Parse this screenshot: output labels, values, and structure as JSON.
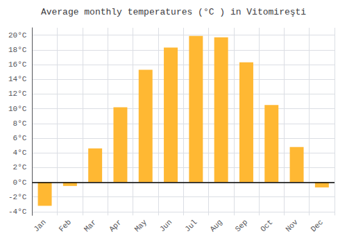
{
  "chart_data": {
    "type": "bar",
    "title": "Average monthly temperatures (°C ) in Vitomireşti",
    "categories": [
      "Jan",
      "Feb",
      "Mar",
      "Apr",
      "May",
      "Jun",
      "Jul",
      "Aug",
      "Sep",
      "Oct",
      "Nov",
      "Dec"
    ],
    "values": [
      -3.2,
      -0.5,
      4.6,
      10.2,
      15.3,
      18.3,
      19.9,
      19.7,
      16.3,
      10.5,
      4.8,
      -0.7
    ],
    "color": "#FFB833",
    "ylim": [
      -4.5,
      21
    ],
    "yticks": [
      {
        "value": -4,
        "label": "-4°C"
      },
      {
        "value": -2,
        "label": "-2°C"
      },
      {
        "value": 0,
        "label": "0°C"
      },
      {
        "value": 2,
        "label": "2°C"
      },
      {
        "value": 4,
        "label": "4°C"
      },
      {
        "value": 6,
        "label": "6°C"
      },
      {
        "value": 8,
        "label": "8°C"
      },
      {
        "value": 10,
        "label": "10°C"
      },
      {
        "value": 12,
        "label": "12°C"
      },
      {
        "value": 14,
        "label": "14°C"
      },
      {
        "value": 16,
        "label": "16°C"
      },
      {
        "value": 18,
        "label": "18°C"
      },
      {
        "value": 20,
        "label": "20°C"
      }
    ],
    "grid": true
  }
}
